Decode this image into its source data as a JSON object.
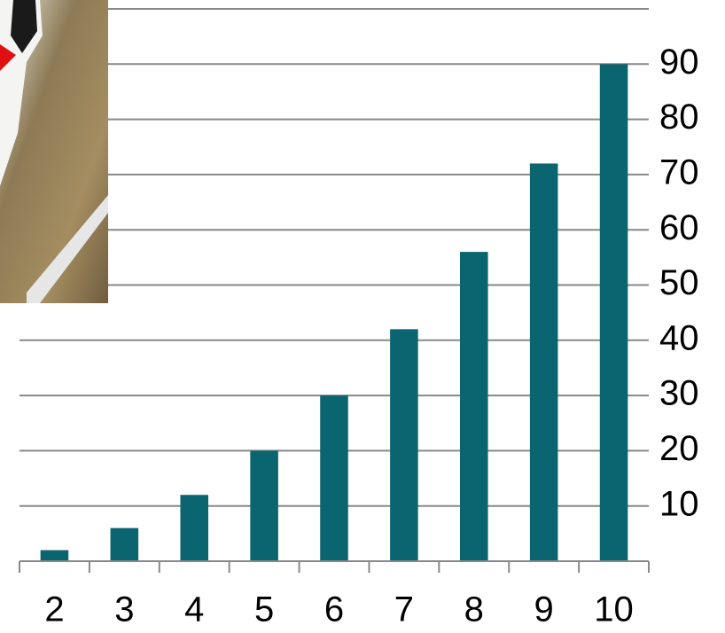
{
  "chart_data": {
    "type": "bar",
    "categories": [
      "2",
      "3",
      "4",
      "5",
      "6",
      "7",
      "8",
      "9",
      "10"
    ],
    "values": [
      2,
      6,
      12,
      20,
      30,
      42,
      56,
      72,
      90
    ],
    "color": "#0b6570",
    "ylim": [
      0,
      100
    ],
    "yticks": [
      10,
      20,
      30,
      40,
      50,
      60,
      70,
      80,
      90
    ],
    "y_axis_side": "right",
    "grid": true
  }
}
